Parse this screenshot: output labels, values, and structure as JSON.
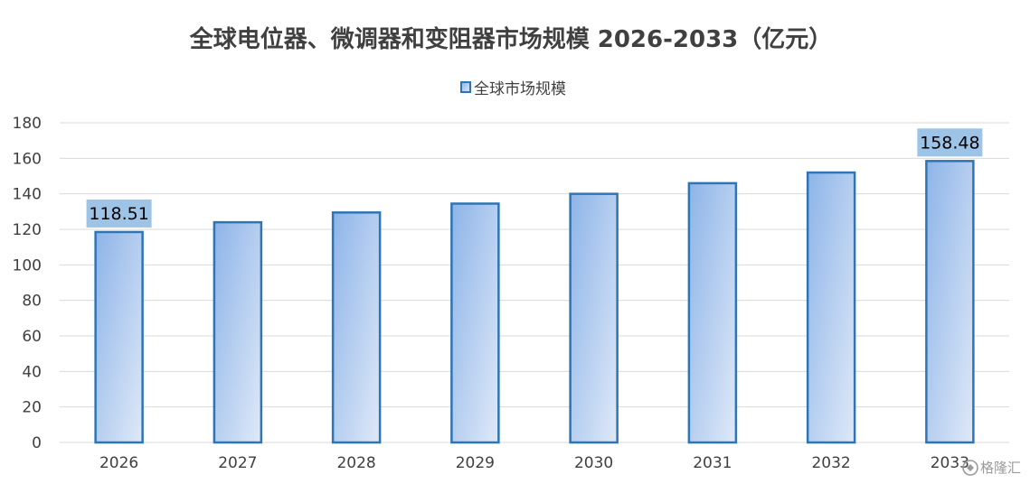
{
  "chart_data": {
    "type": "bar",
    "title": "全球电位器、微调器和变阻器市场规模 2026-2033（亿元）",
    "categories": [
      "2026",
      "2027",
      "2028",
      "2029",
      "2030",
      "2031",
      "2032",
      "2033"
    ],
    "series": [
      {
        "name": "全球市场规模",
        "values": [
          118.51,
          124.0,
          129.5,
          134.5,
          140.0,
          146.0,
          152.0,
          158.48
        ],
        "data_labels": [
          "118.51",
          "",
          "",
          "",
          "",
          "",
          "",
          "158.48"
        ]
      }
    ],
    "xlabel": "",
    "ylabel": "",
    "ylim": [
      0,
      180
    ],
    "yticks": [
      0,
      20,
      40,
      60,
      80,
      100,
      120,
      140,
      160,
      180
    ],
    "grid": true,
    "legend_position": "top-center",
    "colors": {
      "bar_fill_start": "#8db4e8",
      "bar_fill_end": "#dfe9f8",
      "bar_border": "#2e75b6",
      "label_box": "#9dc3e6",
      "gridline": "#d9d9d9"
    }
  },
  "watermark": "格隆汇"
}
